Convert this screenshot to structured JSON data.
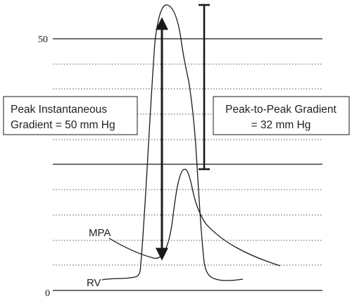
{
  "y_axis": {
    "tick_top": "50",
    "tick_bottom": "0"
  },
  "curves": {
    "mpa_label": "MPA",
    "rv_label": "RV"
  },
  "annotations": {
    "left_box_line1": "Peak Instantaneous",
    "left_box_line2": "Gradient = 50 mm Hg",
    "right_box_line1": "Peak-to-Peak Gradient",
    "right_box_line2": "= 32 mm Hg"
  }
}
